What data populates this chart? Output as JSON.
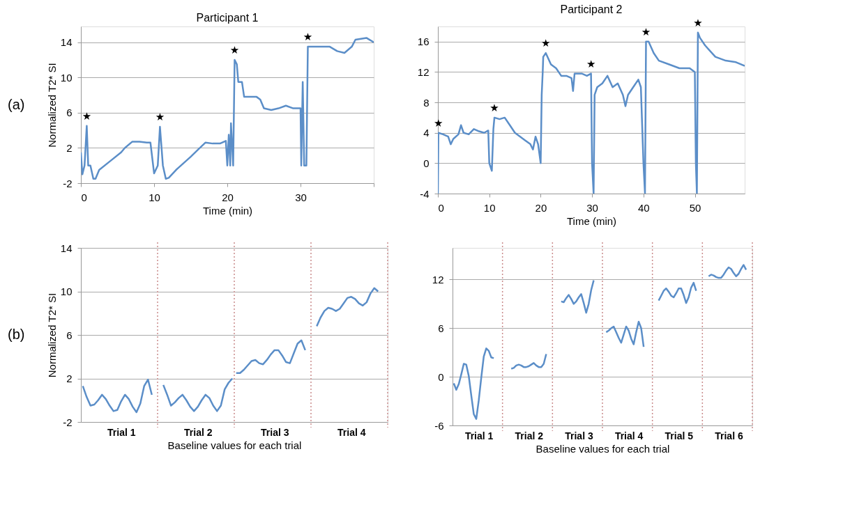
{
  "chart_data": [
    {
      "type": "line",
      "title": "Participant 1",
      "xlabel": "Time (min)",
      "ylabel": "Normalized T2* SI",
      "xlim": [
        0,
        40
      ],
      "xticks": [
        0,
        10,
        20,
        30,
        {
          "value": 40,
          "label": null
        }
      ],
      "ylim": [
        -2,
        15.8
      ],
      "yticks": [
        -2,
        2,
        6,
        10,
        14
      ],
      "grid": "y",
      "series": [
        {
          "color": "#5b8ec8",
          "x": [
            0,
            0.2,
            0.5,
            0.8,
            1.0,
            1.3,
            1.7,
            2,
            2.5,
            4,
            5.5,
            6,
            7,
            8,
            9,
            9.5,
            10,
            10.5,
            10.8,
            11.2,
            11.6,
            12,
            13,
            15,
            16,
            17,
            18,
            19,
            19.8,
            20,
            20.2,
            20.4,
            20.5,
            20.8,
            21,
            21.3,
            21.5,
            22,
            22.3,
            24,
            24.5,
            25,
            26,
            27,
            28,
            29,
            30,
            30.1,
            30.3,
            30.5,
            30.8,
            31,
            32,
            34,
            35,
            36,
            37,
            37.5,
            39,
            40
          ],
          "values": [
            1.5,
            -1,
            0,
            4.5,
            0,
            0,
            -1.5,
            -1.5,
            -0.5,
            0.5,
            1.5,
            2,
            2.7,
            2.7,
            2.6,
            2.6,
            -0.9,
            0,
            4.4,
            0,
            -1.5,
            -1.4,
            -0.5,
            1,
            1.8,
            2.6,
            2.5,
            2.5,
            2.8,
            0,
            3.5,
            0,
            4.8,
            0,
            12,
            11.5,
            9.5,
            9.5,
            7.8,
            7.8,
            7.5,
            6.5,
            6.3,
            6.5,
            6.8,
            6.5,
            6.5,
            0,
            9.5,
            0,
            0,
            13.5,
            13.5,
            13.5,
            13,
            12.8,
            13.5,
            14.3,
            14.5,
            14
          ]
        }
      ],
      "annotations": [
        "(a)",
        {
          "text": "★",
          "x": 0.8,
          "y": 4.5
        },
        {
          "text": "★",
          "x": 10.8,
          "y": 4.4
        },
        {
          "text": "★",
          "x": 21,
          "y": 12
        },
        {
          "text": "★",
          "x": 31,
          "y": 13.5
        }
      ]
    },
    {
      "type": "line",
      "title": "Participant 2",
      "xlabel": "Time (min)",
      "xlim": [
        0,
        59.7
      ],
      "xticks": [
        0,
        10,
        20,
        30,
        40,
        50
      ],
      "ylim": [
        -4,
        18
      ],
      "yticks": [
        -4,
        0,
        4,
        8,
        12,
        16
      ],
      "grid": "y",
      "series": [
        {
          "color": "#5b8ec8",
          "x": [
            0,
            0.1,
            1,
            2,
            2.5,
            3,
            4,
            4.5,
            5,
            6,
            7,
            8,
            9,
            9.8,
            10,
            10.5,
            10.8,
            11,
            12,
            13,
            14,
            15,
            16,
            17,
            18,
            18.5,
            19,
            19.5,
            20,
            20.2,
            20.4,
            20.5,
            21,
            22,
            23,
            24,
            25,
            26,
            26.3,
            26.6,
            28,
            29,
            29.8,
            30,
            30.3,
            30.5,
            31,
            32,
            33,
            34,
            35,
            36,
            36.5,
            37,
            38,
            39,
            39.5,
            40,
            40.3,
            40.5,
            41,
            42,
            43,
            45,
            47,
            49,
            50,
            50.2,
            50.4,
            50.6,
            51,
            52,
            54,
            56,
            58,
            59.7
          ],
          "values": [
            -4,
            4,
            3.8,
            3.5,
            2.5,
            3.2,
            3.8,
            5,
            4,
            3.8,
            4.5,
            4.2,
            4,
            4.3,
            0,
            -1,
            4.5,
            6,
            5.8,
            6,
            5,
            4,
            3.5,
            3,
            2.5,
            1.8,
            3.5,
            2.5,
            0,
            9,
            12,
            14,
            14.5,
            13,
            12.5,
            11.5,
            11.5,
            11.2,
            9.5,
            11.8,
            11.8,
            11.5,
            11.8,
            0,
            -4,
            9,
            10,
            10.5,
            11.5,
            10,
            10.5,
            9,
            7.5,
            9,
            10,
            11,
            10,
            0,
            -4,
            16,
            16,
            14.5,
            13.5,
            13,
            12.5,
            12.5,
            12,
            0,
            -4,
            17.2,
            16.5,
            15.5,
            14,
            13.5,
            13.3,
            12.8
          ]
        }
      ],
      "annotations": [
        {
          "text": "★",
          "x": 0.1,
          "y": 4
        },
        {
          "text": "★",
          "x": 11,
          "y": 6
        },
        {
          "text": "★",
          "x": 21,
          "y": 14.5
        },
        {
          "text": "★",
          "x": 29.8,
          "y": 11.8
        },
        {
          "text": "★",
          "x": 40.5,
          "y": 16
        },
        {
          "text": "★",
          "x": 50.6,
          "y": 17.2
        }
      ]
    },
    {
      "type": "line",
      "xlabel": "Baseline values for each trial",
      "ylabel": "Normalized T2* SI",
      "ylim": [
        -2,
        14
      ],
      "yticks": [
        -2,
        2,
        6,
        10,
        14
      ],
      "grid": true,
      "categories": [
        null,
        null,
        null,
        null,
        null,
        null,
        null,
        null,
        null,
        null,
        "Trial 1",
        null,
        null,
        null,
        null,
        null,
        null,
        null,
        null,
        null,
        null,
        null,
        null,
        null,
        null,
        null,
        null,
        null,
        null,
        null,
        "Trial 2",
        null,
        null,
        null,
        null,
        null,
        null,
        null,
        null,
        null,
        null,
        null,
        null,
        null,
        null,
        null,
        null,
        null,
        null,
        null,
        "Trial 3",
        null,
        null,
        null,
        null,
        null,
        null,
        null,
        null,
        null,
        null,
        null,
        null,
        null,
        null,
        null,
        null,
        null,
        null,
        null,
        "Trial 4",
        null,
        null,
        null,
        null,
        null,
        null,
        null,
        null,
        null
      ],
      "series": [
        {
          "color": "#5b8ec8",
          "values": [
            1.3,
            0.3,
            -0.5,
            -0.4,
            0.0,
            0.5,
            0.1,
            -0.5,
            -1.0,
            -0.9,
            -0.1,
            0.5,
            0.1,
            -0.6,
            -1.1,
            -0.3,
            1.3,
            1.9,
            0.5,
            null,
            null,
            null,
            null,
            null,
            null,
            null,
            null,
            null,
            null,
            null,
            null,
            null,
            null,
            null,
            null,
            null,
            null,
            null,
            null,
            null,
            null,
            null,
            null,
            null,
            null,
            null,
            null,
            null,
            null,
            null,
            null,
            null,
            null,
            null,
            null,
            null,
            null,
            null,
            null,
            null,
            null,
            null,
            null,
            null,
            null,
            null,
            null,
            null,
            null,
            null,
            null,
            null,
            null,
            null,
            null,
            null,
            null,
            null,
            null,
            null
          ]
        },
        {
          "color": "#5b8ec8",
          "values": [
            null,
            null,
            null,
            null,
            null,
            null,
            null,
            null,
            null,
            null,
            null,
            null,
            null,
            null,
            null,
            null,
            null,
            null,
            null,
            null,
            null,
            1.4,
            0.5,
            -0.5,
            -0.2,
            0.2,
            0.5,
            0.0,
            -0.6,
            -1.0,
            -0.6,
            0.0,
            0.5,
            0.2,
            -0.5,
            -1.0,
            -0.5,
            1.0,
            1.6,
            2.0,
            null,
            null,
            null,
            null,
            null,
            null,
            null,
            null,
            null,
            null,
            null,
            null,
            null,
            null,
            null,
            null,
            null,
            null,
            null,
            null,
            null,
            null,
            null,
            null,
            null,
            null,
            null,
            null,
            null,
            null,
            null,
            null,
            null,
            null,
            null,
            null,
            null,
            null,
            null,
            null
          ]
        },
        {
          "color": "#5b8ec8",
          "values": [
            null,
            null,
            null,
            null,
            null,
            null,
            null,
            null,
            null,
            null,
            null,
            null,
            null,
            null,
            null,
            null,
            null,
            null,
            null,
            null,
            null,
            null,
            null,
            null,
            null,
            null,
            null,
            null,
            null,
            null,
            null,
            null,
            null,
            null,
            null,
            null,
            null,
            null,
            null,
            null,
            2.5,
            2.5,
            2.8,
            3.2,
            3.6,
            3.7,
            3.4,
            3.3,
            3.7,
            4.2,
            4.6,
            4.6,
            4.1,
            3.5,
            3.4,
            4.3,
            5.2,
            5.5,
            4.6,
            null,
            null,
            null,
            null,
            null,
            null,
            null,
            null,
            null,
            null,
            null,
            null,
            null,
            null,
            null,
            null,
            null,
            null,
            null,
            null,
            null
          ]
        },
        {
          "color": "#5b8ec8",
          "values": [
            null,
            null,
            null,
            null,
            null,
            null,
            null,
            null,
            null,
            null,
            null,
            null,
            null,
            null,
            null,
            null,
            null,
            null,
            null,
            null,
            null,
            null,
            null,
            null,
            null,
            null,
            null,
            null,
            null,
            null,
            null,
            null,
            null,
            null,
            null,
            null,
            null,
            null,
            null,
            null,
            null,
            null,
            null,
            null,
            null,
            null,
            null,
            null,
            null,
            null,
            null,
            null,
            null,
            null,
            null,
            null,
            null,
            null,
            null,
            null,
            null,
            6.8,
            7.6,
            8.2,
            8.5,
            8.4,
            8.2,
            8.4,
            8.9,
            9.4,
            9.5,
            9.3,
            8.9,
            8.7,
            9.0,
            9.8,
            10.3,
            10.0,
            null,
            null
          ]
        }
      ],
      "annotations": [
        "(b)"
      ]
    },
    {
      "type": "line",
      "xlabel": "Baseline values for each trial",
      "ylim": [
        -6,
        15.9
      ],
      "yticks": [
        -6,
        0,
        6,
        12
      ],
      "grid": true,
      "categories": [
        null,
        null,
        null,
        null,
        null,
        null,
        null,
        null,
        null,
        null,
        "Trial 1",
        null,
        null,
        null,
        null,
        null,
        null,
        null,
        null,
        null,
        null,
        null,
        null,
        null,
        null,
        null,
        null,
        null,
        null,
        null,
        "Trial 2",
        null,
        null,
        null,
        null,
        null,
        null,
        null,
        null,
        null,
        null,
        null,
        null,
        null,
        null,
        null,
        null,
        null,
        null,
        null,
        "Trial 3",
        null,
        null,
        null,
        null,
        null,
        null,
        null,
        null,
        null,
        null,
        null,
        null,
        null,
        null,
        null,
        null,
        null,
        null,
        null,
        "Trial 4",
        null,
        null,
        null,
        null,
        null,
        null,
        null,
        null,
        null,
        null,
        null,
        null,
        null,
        null,
        null,
        null,
        null,
        null,
        null,
        "Trial 5",
        null,
        null,
        null,
        null,
        null,
        null,
        null,
        null,
        null,
        null,
        null,
        null,
        null,
        null,
        null,
        null,
        null,
        null,
        null,
        "Trial 6",
        null,
        null,
        null,
        null,
        null,
        null,
        null,
        null,
        null
      ],
      "series": [
        {
          "color": "#5b8ec8",
          "values": [
            -0.8,
            -1.6,
            -0.9,
            0.3,
            1.6,
            1.5,
            0.1,
            -2.3,
            -4.6,
            -5.2,
            -2.9,
            -0.1,
            2.5,
            3.5,
            3.2,
            2.4,
            2.3,
            null,
            null,
            null,
            null,
            null,
            null,
            null,
            null,
            null,
            null,
            null,
            null,
            null,
            null,
            null,
            null,
            null,
            null,
            null,
            null,
            null,
            null,
            null,
            null,
            null,
            null,
            null,
            null,
            null,
            null,
            null,
            null,
            null,
            null,
            null,
            null,
            null,
            null,
            null,
            null,
            null,
            null,
            null,
            null,
            null,
            null,
            null,
            null,
            null,
            null,
            null,
            null,
            null,
            null,
            null,
            null,
            null,
            null,
            null,
            null,
            null,
            null,
            null,
            null,
            null,
            null,
            null,
            null,
            null,
            null,
            null,
            null,
            null,
            null,
            null,
            null,
            null,
            null,
            null,
            null,
            null,
            null,
            null,
            null,
            null,
            null,
            null,
            null,
            null,
            null,
            null,
            null,
            null,
            null,
            null,
            null,
            null,
            null,
            null,
            null,
            null,
            null,
            null
          ]
        },
        {
          "color": "#5b8ec8",
          "values": [
            null,
            null,
            null,
            null,
            null,
            null,
            null,
            null,
            null,
            null,
            null,
            null,
            null,
            null,
            null,
            null,
            null,
            null,
            null,
            null,
            null,
            null,
            null,
            1.0,
            1.1,
            1.4,
            1.5,
            1.4,
            1.2,
            1.2,
            1.3,
            1.5,
            1.7,
            1.4,
            1.2,
            1.2,
            1.6,
            2.8,
            null,
            null,
            null,
            null,
            null,
            null,
            null,
            null,
            null,
            null,
            null,
            null,
            null,
            null,
            null,
            null,
            null,
            null,
            null,
            null,
            null,
            null,
            null,
            null,
            null,
            null,
            null,
            null,
            null,
            null,
            null,
            null,
            null,
            null,
            null,
            null,
            null,
            null,
            null,
            null,
            null,
            null,
            null,
            null,
            null,
            null,
            null,
            null,
            null,
            null,
            null,
            null,
            null,
            null,
            null,
            null,
            null,
            null,
            null,
            null,
            null,
            null,
            null,
            null,
            null,
            null,
            null,
            null,
            null,
            null,
            null,
            null,
            null,
            null,
            null,
            null,
            null,
            null,
            null,
            null,
            null,
            null
          ]
        },
        {
          "color": "#5b8ec8",
          "values": [
            null,
            null,
            null,
            null,
            null,
            null,
            null,
            null,
            null,
            null,
            null,
            null,
            null,
            null,
            null,
            null,
            null,
            null,
            null,
            null,
            null,
            null,
            null,
            null,
            null,
            null,
            null,
            null,
            null,
            null,
            null,
            null,
            null,
            null,
            null,
            null,
            null,
            null,
            null,
            null,
            null,
            null,
            null,
            9.3,
            9.2,
            9.7,
            10.1,
            9.6,
            9.0,
            9.3,
            9.8,
            10.2,
            9.1,
            7.9,
            9.0,
            10.7,
            11.9,
            null,
            null,
            null,
            null,
            null,
            null,
            null,
            null,
            null,
            null,
            null,
            null,
            null,
            null,
            null,
            null,
            null,
            null,
            null,
            null,
            null,
            null,
            null,
            null,
            null,
            null,
            null,
            null,
            null,
            null,
            null,
            null,
            null,
            null,
            null,
            null,
            null,
            null,
            null,
            null,
            null,
            null,
            null,
            null,
            null,
            null,
            null,
            null,
            null,
            null,
            null,
            null,
            null,
            null,
            null,
            null,
            null,
            null,
            null,
            null,
            null,
            null,
            null
          ]
        },
        {
          "color": "#5b8ec8",
          "values": [
            null,
            null,
            null,
            null,
            null,
            null,
            null,
            null,
            null,
            null,
            null,
            null,
            null,
            null,
            null,
            null,
            null,
            null,
            null,
            null,
            null,
            null,
            null,
            null,
            null,
            null,
            null,
            null,
            null,
            null,
            null,
            null,
            null,
            null,
            null,
            null,
            null,
            null,
            null,
            null,
            null,
            null,
            null,
            null,
            null,
            null,
            null,
            null,
            null,
            null,
            null,
            null,
            null,
            null,
            null,
            null,
            null,
            null,
            null,
            null,
            null,
            5.5,
            5.7,
            6.0,
            6.2,
            5.5,
            4.8,
            4.2,
            5.2,
            6.2,
            5.7,
            4.7,
            4.0,
            5.5,
            6.8,
            6.0,
            3.7,
            null,
            null,
            null,
            null,
            null,
            null,
            null,
            null,
            null,
            null,
            null,
            null,
            null,
            null,
            null,
            null,
            null,
            null,
            null,
            null,
            null,
            null,
            null,
            null,
            null,
            null,
            null,
            null,
            null,
            null,
            null,
            null,
            null,
            null,
            null,
            null,
            null,
            null,
            null,
            null,
            null,
            null,
            null
          ]
        },
        {
          "color": "#5b8ec8",
          "values": [
            null,
            null,
            null,
            null,
            null,
            null,
            null,
            null,
            null,
            null,
            null,
            null,
            null,
            null,
            null,
            null,
            null,
            null,
            null,
            null,
            null,
            null,
            null,
            null,
            null,
            null,
            null,
            null,
            null,
            null,
            null,
            null,
            null,
            null,
            null,
            null,
            null,
            null,
            null,
            null,
            null,
            null,
            null,
            null,
            null,
            null,
            null,
            null,
            null,
            null,
            null,
            null,
            null,
            null,
            null,
            null,
            null,
            null,
            null,
            null,
            null,
            null,
            null,
            null,
            null,
            null,
            null,
            null,
            null,
            null,
            null,
            null,
            null,
            null,
            null,
            null,
            null,
            null,
            null,
            null,
            null,
            null,
            9.4,
            10.0,
            10.6,
            10.9,
            10.5,
            10.0,
            9.8,
            10.3,
            10.9,
            10.9,
            10.1,
            9.1,
            9.8,
            11.0,
            11.6,
            10.6,
            null,
            null,
            null,
            null,
            null,
            null,
            null,
            null,
            null,
            null,
            null,
            null,
            null,
            null,
            null,
            null,
            null,
            null,
            null,
            null,
            null,
            null
          ]
        },
        {
          "color": "#5b8ec8",
          "values": [
            null,
            null,
            null,
            null,
            null,
            null,
            null,
            null,
            null,
            null,
            null,
            null,
            null,
            null,
            null,
            null,
            null,
            null,
            null,
            null,
            null,
            null,
            null,
            null,
            null,
            null,
            null,
            null,
            null,
            null,
            null,
            null,
            null,
            null,
            null,
            null,
            null,
            null,
            null,
            null,
            null,
            null,
            null,
            null,
            null,
            null,
            null,
            null,
            null,
            null,
            null,
            null,
            null,
            null,
            null,
            null,
            null,
            null,
            null,
            null,
            null,
            null,
            null,
            null,
            null,
            null,
            null,
            null,
            null,
            null,
            null,
            null,
            null,
            null,
            null,
            null,
            null,
            null,
            null,
            null,
            null,
            null,
            null,
            null,
            null,
            null,
            null,
            null,
            null,
            null,
            null,
            null,
            null,
            null,
            null,
            null,
            null,
            null,
            null,
            null,
            null,
            null,
            12.4,
            12.6,
            12.5,
            12.3,
            12.2,
            12.2,
            12.6,
            13.1,
            13.5,
            13.3,
            12.8,
            12.4,
            12.7,
            13.3,
            13.8,
            13.2,
            null,
            null
          ]
        }
      ]
    }
  ]
}
